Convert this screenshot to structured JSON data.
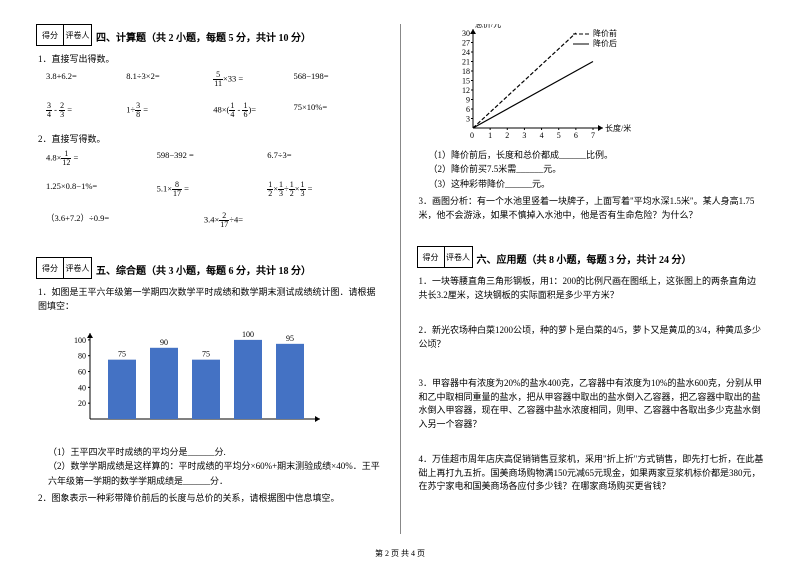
{
  "score_labels": {
    "score": "得分",
    "reviewer": "评卷人"
  },
  "left": {
    "sec4": {
      "title": "四、计算题（共 2 小题，每题 5 分，共计 10 分）",
      "q1": "1．直接写出得数。",
      "row1": [
        "3.8+6.2=",
        "8.1÷3×2=",
        "",
        "568−198="
      ],
      "row1_frac": {
        "text": "×33 =",
        "n": "5",
        "d": "11"
      },
      "row2_a": {
        "n1": "3",
        "d1": "4",
        "n2": "2",
        "d2": "3"
      },
      "row2_b": {
        "n": "3",
        "d": "8"
      },
      "row2_c": {
        "n1": "1",
        "d1": "4",
        "n2": "1",
        "d2": "6"
      },
      "row2_d": "75×10%=",
      "q2": "2．直接写得数。",
      "row3_a": {
        "n": "1",
        "d": "12",
        "pre": "4.8×"
      },
      "row3_b": "598−392 =",
      "row3_c": "6.7÷3=",
      "row4_a": "1.25×0.8−1%=",
      "row4_b": {
        "pre": "5.1×",
        "n": "8",
        "d": "17"
      },
      "row4_c_parts": [
        "1",
        "2",
        "1",
        "3",
        "1",
        "2",
        "1",
        "3"
      ],
      "row5_a": "（3.6+7.2）÷0.9=",
      "row5_b": {
        "pre": "3.4×",
        "n": "2",
        "d": "17",
        "post": "÷4="
      }
    },
    "sec5": {
      "title": "五、综合题（共 3 小题，每题 6 分，共计 18 分）",
      "q1": "1．如图是王平六年级第一学期四次数学平时成绩和数学期末测试成绩统计图．请根据图填空：",
      "q1a": "（1）王平四次平时成绩的平均分是______分.",
      "q1b": "（2）数学学期成绩是这样算的：平时成绩的平均分×60%+期末测验成绩×40%．王平六年级第一学期的数学学期成绩是______分．",
      "q2": "2．图象表示一种彩带降价前后的长度与总价的关系，请根据图中信息填空。"
    },
    "bar_chart": {
      "type": "bar",
      "values": [
        75,
        90,
        75,
        100,
        95
      ],
      "labels": [
        "75",
        "90",
        "75",
        "100",
        "95"
      ],
      "ylim": [
        0,
        100
      ],
      "ytick": 20,
      "bar_color": "#4472c4",
      "axis_color": "#000000",
      "bg": "#ffffff",
      "label_fontsize": 8
    }
  },
  "right": {
    "line_chart": {
      "type": "line",
      "xlabel": "长度/米",
      "ylabel": "总价/元",
      "xlim": [
        0,
        7
      ],
      "xtick": 1,
      "ylim": [
        0,
        30
      ],
      "ytick": 3,
      "series": [
        {
          "name": "降价前",
          "dash": "4 2",
          "color": "#000",
          "points": [
            [
              0,
              0
            ],
            [
              6,
              30
            ]
          ]
        },
        {
          "name": "降价后",
          "dash": "0",
          "color": "#000",
          "points": [
            [
              0,
              0
            ],
            [
              7,
              21
            ]
          ]
        }
      ],
      "legend": [
        "降价前",
        "降价后"
      ],
      "label_fontsize": 8
    },
    "q_graph": [
      "（1）降价前后，长度和总价都成______比例。",
      "（2）降价前买7.5米需______元。",
      "（3）这种彩带降价______元。"
    ],
    "q3": "3．画图分析：有一个水池里竖着一块牌子，上面写着\"平均水深1.5米\"。某人身高1.75米，他不会游泳，如果不慎掉入水池中，他是否有生命危险？为什么？",
    "sec6": {
      "title": "六、应用题（共 8 小题，每题 3 分，共计 24 分）",
      "q1": "1．一块等腰直角三角形钢板，用1：200的比例尺画在图纸上，这张图上的两条直角边共长3.2厘米，这块钢板的实际面积是多少平方米？",
      "q2": "2．新光农场种白菜1200公顷，种的萝卜是白菜的4/5，萝卜又是黄瓜的3/4，种黄瓜多少公顷？",
      "q3": "3．甲容器中有浓度为20%的盐水400克，乙容器中有浓度为10%的盐水600克，分别从甲和乙中取相同重量的盐水，把从甲容器中取出的盐水倒入乙容器，把乙容器中取出的盐水倒入甲容器，现在甲、乙容器中盐水浓度相同，则甲、乙容器中各取出多少克盐水倒入另一个容器？",
      "q4": "4．万佳超市周年店庆高促销销售豆浆机，采用\"折上折\"方式销售，即先打七折，在此基础上再打九五折。国美商场购物满150元减65元现金，如果两家豆浆机标价都是380元，在苏宁家电和国美商场各应付多少钱？在哪家商场购买更省钱？"
    }
  },
  "footer": "第 2 页 共 4 页"
}
